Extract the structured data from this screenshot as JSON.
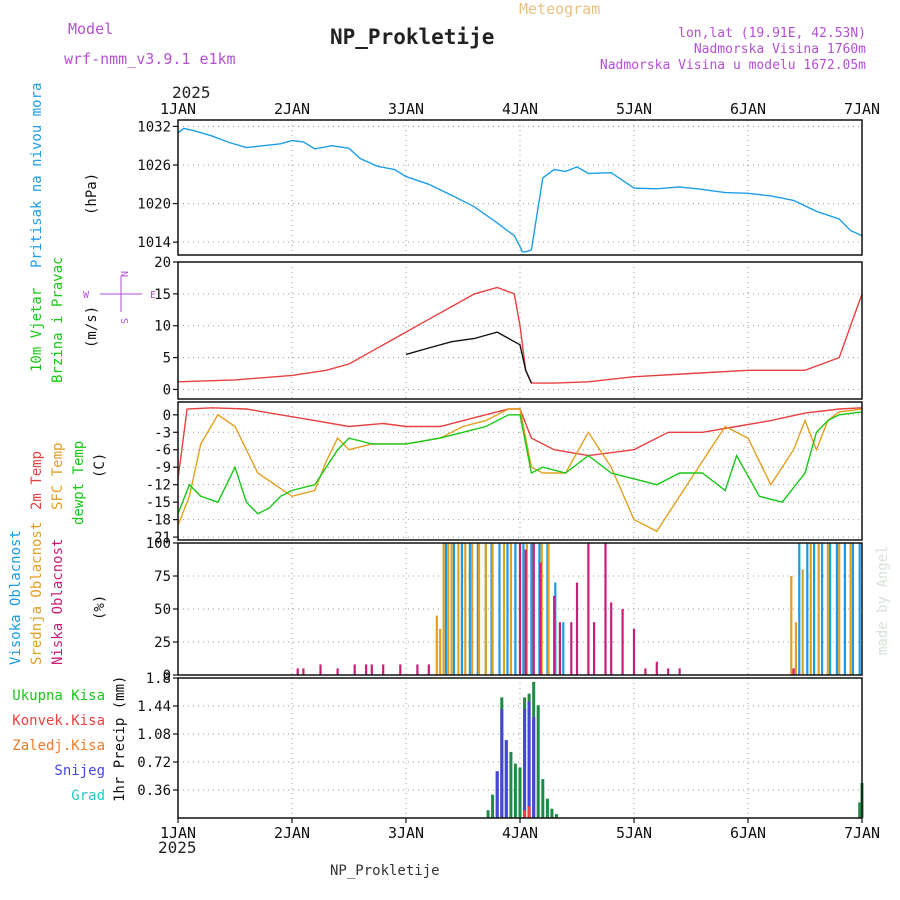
{
  "header": {
    "model_label": "Model",
    "model_name": "wrf-nmm_v3.9.1 e1km",
    "station": "NP_Prokletije",
    "meteogram": "Meteogram",
    "lonlat": "lon,lat (19.91E, 42.53N)",
    "elevation": "Nadmorska Visina 1760m",
    "model_elevation": "Nadmorska Visina u modelu 1672.05m",
    "credit": "made by Angel",
    "footer_station": "NP_Prokletije"
  },
  "time_axis": {
    "year": "2025",
    "labels": [
      "1JAN",
      "2JAN",
      "3JAN",
      "4JAN",
      "5JAN",
      "6JAN",
      "7JAN"
    ]
  },
  "colors": {
    "pressure": "#1e9ee8",
    "temp2m": "#e84040",
    "sfc": "#e0a020",
    "dewpt": "#18c818",
    "high_cloud": "#1a9be8",
    "mid_cloud": "#e0a020",
    "low_cloud": "#c81e78",
    "total_precip": "#1e8a46",
    "snow": "#4646d2",
    "legend_green": "#18c818",
    "legend_red": "#f04040",
    "legend_orange": "#f07a28",
    "legend_blue": "#4646e6",
    "legend_cyan": "#28c8c8",
    "magenta": "#b450d2",
    "gold": "#e8b848"
  },
  "chart_data": [
    {
      "type": "line",
      "panel": "pressure",
      "ylabel": "Pritisak na nivou mora",
      "unit": "(hPa)",
      "yticks": [
        1014,
        1020,
        1026,
        1032
      ],
      "ylim": [
        1012,
        1033
      ],
      "xlim": [
        0,
        6
      ],
      "grid": true,
      "series": [
        {
          "color_key": "pressure",
          "x": [
            0,
            0.05,
            0.15,
            0.3,
            0.45,
            0.6,
            0.75,
            0.9,
            1.0,
            1.1,
            1.2,
            1.35,
            1.5,
            1.6,
            1.75,
            1.9,
            2.0,
            2.2,
            2.4,
            2.6,
            2.8,
            2.95,
            3.0,
            3.02,
            3.05,
            3.1,
            3.2,
            3.3,
            3.4,
            3.5,
            3.6,
            3.8,
            4.0,
            4.2,
            4.4,
            4.6,
            4.8,
            5.0,
            5.2,
            5.4,
            5.6,
            5.8,
            5.9,
            6.0
          ],
          "y": [
            1031,
            1031.7,
            1031.3,
            1030.5,
            1029.5,
            1028.7,
            1029,
            1029.3,
            1029.8,
            1029.6,
            1028.5,
            1029,
            1028.6,
            1027,
            1025.8,
            1025.3,
            1024.2,
            1023,
            1021.3,
            1019.5,
            1017,
            1015,
            1013.3,
            1012.5,
            1012.5,
            1012.8,
            1024,
            1025.3,
            1025,
            1025.7,
            1024.7,
            1024.8,
            1022.4,
            1022.3,
            1022.6,
            1022.2,
            1021.7,
            1021.6,
            1021.2,
            1020.5,
            1018.8,
            1017.6,
            1015.8,
            1015
          ]
        }
      ]
    },
    {
      "type": "line",
      "panel": "wind",
      "ylabel": "10m Vjetar Brzina i Pravac",
      "unit": "(m/s)",
      "compass": "N S E W",
      "yticks": [
        0,
        5,
        10,
        15,
        20
      ],
      "ylim": [
        -1.5,
        20
      ],
      "xlim": [
        0,
        6
      ],
      "series": [
        {
          "name": "gust",
          "color_key": "temp2m",
          "x": [
            0,
            0.5,
            1.0,
            1.3,
            1.5,
            1.7,
            2.0,
            2.2,
            2.4,
            2.6,
            2.8,
            2.95,
            3.0,
            3.05,
            3.1,
            3.3,
            3.6,
            4.0,
            4.5,
            5.0,
            5.5,
            5.8,
            6.0
          ],
          "y": [
            1.2,
            1.5,
            2.2,
            3,
            4,
            6,
            9,
            11,
            13,
            15,
            16,
            15,
            10,
            3,
            1,
            1,
            1.2,
            2,
            2.5,
            3,
            3,
            5,
            15
          ]
        },
        {
          "name": "speed",
          "color_key": "text",
          "x": [
            2.0,
            2.2,
            2.4,
            2.6,
            2.8,
            3.0,
            3.05,
            3.1
          ],
          "y": [
            5.5,
            6.5,
            7.5,
            8,
            9,
            7,
            3,
            1
          ]
        }
      ]
    },
    {
      "type": "line",
      "panel": "temperature",
      "ylabel": "2m Temp / SFC Temp / dewpt Temp",
      "unit": "(C)",
      "yticks": [
        0,
        -3,
        -6,
        -9,
        -12,
        -15,
        -18,
        -21
      ],
      "ylim": [
        -21.5,
        2.2
      ],
      "xlim": [
        0,
        6
      ],
      "series": [
        {
          "name": "2m Temp",
          "color_key": "temp2m",
          "x": [
            0,
            0.08,
            0.3,
            0.6,
            0.9,
            1.2,
            1.5,
            1.8,
            2.0,
            2.3,
            2.6,
            2.9,
            3.0,
            3.1,
            3.3,
            3.6,
            3.8,
            4.0,
            4.3,
            4.6,
            4.9,
            5.2,
            5.5,
            5.8,
            6.0
          ],
          "y": [
            -11,
            1,
            1.2,
            1,
            0,
            -1,
            -2,
            -1.5,
            -2,
            -2,
            -0.5,
            1,
            1,
            -4,
            -6,
            -7,
            -6.5,
            -6,
            -3,
            -3,
            -2,
            -1,
            0.3,
            1,
            1.2
          ]
        },
        {
          "name": "SFC Temp",
          "color_key": "sfc",
          "x": [
            0,
            0.1,
            0.2,
            0.35,
            0.5,
            0.7,
            1.0,
            1.2,
            1.3,
            1.4,
            1.5,
            1.7,
            2.0,
            2.3,
            2.5,
            2.7,
            2.9,
            3.0,
            3.1,
            3.2,
            3.4,
            3.6,
            3.8,
            4.0,
            4.2,
            4.4,
            4.6,
            4.8,
            5.0,
            5.2,
            5.4,
            5.5,
            5.6,
            5.7,
            5.8,
            6.0
          ],
          "y": [
            -19,
            -14,
            -5,
            0,
            -2,
            -10,
            -14,
            -13,
            -8,
            -4,
            -6,
            -5,
            -5,
            -4,
            -2,
            -1,
            1,
            1,
            -9,
            -10,
            -10,
            -3,
            -9,
            -18,
            -20,
            -14,
            -8,
            -2,
            -4,
            -12,
            -6,
            -1,
            -6,
            -1,
            0.5,
            1
          ]
        },
        {
          "name": "dewpt Temp",
          "color_key": "dewpt",
          "x": [
            0,
            0.1,
            0.2,
            0.35,
            0.5,
            0.6,
            0.7,
            0.8,
            0.9,
            1.0,
            1.2,
            1.3,
            1.4,
            1.5,
            1.7,
            2.0,
            2.3,
            2.5,
            2.7,
            2.9,
            3.0,
            3.1,
            3.2,
            3.4,
            3.6,
            3.8,
            4.0,
            4.2,
            4.4,
            4.6,
            4.8,
            4.9,
            5.1,
            5.3,
            5.5,
            5.6,
            5.7,
            5.8,
            6.0
          ],
          "y": [
            -17,
            -12,
            -14,
            -15,
            -9,
            -15,
            -17,
            -16,
            -14,
            -13,
            -12,
            -9,
            -6,
            -4,
            -5,
            -5,
            -4,
            -3,
            -2,
            0,
            0,
            -10,
            -9,
            -10,
            -7,
            -10,
            -11,
            -12,
            -10,
            -10,
            -13,
            -7,
            -14,
            -15,
            -10,
            -3,
            -1,
            0,
            0.5
          ]
        }
      ]
    },
    {
      "type": "bar",
      "panel": "cloud",
      "ylabel": "Visoka Oblacnost / Srednja Oblacnost / Niska Oblacnost",
      "unit": "(%)",
      "yticks": [
        0,
        25,
        50,
        75,
        100
      ],
      "ylim": [
        0,
        100
      ],
      "xlim": [
        0,
        6
      ],
      "series": [
        {
          "name": "Visoka Oblacnost",
          "color_key": "high_cloud",
          "x": [
            2.35,
            2.42,
            2.49,
            2.56,
            2.63,
            2.7,
            2.75,
            2.82,
            2.89,
            2.96,
            3.03,
            3.1,
            3.17,
            3.24,
            3.31,
            3.38,
            5.45,
            5.52,
            5.58,
            5.65,
            5.72,
            5.78,
            5.85,
            5.92,
            5.98
          ],
          "y": [
            100,
            100,
            100,
            100,
            100,
            100,
            100,
            100,
            100,
            100,
            100,
            100,
            100,
            100,
            70,
            40,
            100,
            100,
            100,
            100,
            100,
            100,
            100,
            100,
            100
          ]
        },
        {
          "name": "Srednja Oblacnost",
          "color_key": "mid_cloud",
          "x": [
            2.27,
            2.3,
            2.33,
            2.37,
            2.4,
            2.46,
            2.52,
            2.58,
            2.64,
            2.7,
            2.76,
            2.86,
            2.92,
            3.06,
            3.12,
            3.19,
            3.25,
            5.38,
            5.42,
            5.48,
            5.55,
            5.62,
            5.7,
            5.8,
            5.9
          ],
          "y": [
            45,
            35,
            100,
            100,
            100,
            100,
            100,
            100,
            100,
            100,
            100,
            100,
            100,
            100,
            100,
            100,
            100,
            75,
            40,
            80,
            100,
            100,
            100,
            100,
            100
          ]
        },
        {
          "name": "Niska Oblacnost",
          "color_key": "low_cloud",
          "x": [
            1.05,
            1.1,
            1.25,
            1.4,
            1.55,
            1.65,
            1.7,
            1.8,
            1.95,
            2.1,
            2.2,
            3.0,
            3.05,
            3.12,
            3.18,
            3.3,
            3.35,
            3.45,
            3.5,
            3.6,
            3.65,
            3.75,
            3.8,
            3.9,
            4.0,
            4.1,
            4.2,
            4.3,
            4.4,
            5.4
          ],
          "y": [
            5,
            5,
            8,
            5,
            8,
            8,
            8,
            8,
            8,
            8,
            8,
            100,
            95,
            100,
            85,
            60,
            40,
            40,
            70,
            100,
            40,
            100,
            55,
            50,
            35,
            5,
            10,
            5,
            5,
            5
          ]
        }
      ]
    },
    {
      "type": "bar",
      "panel": "precip",
      "ylabel": "1hr Precip",
      "unit": "(mm)",
      "legend": [
        "Ukupna Kisa",
        "Konvek.Kisa",
        "Zaledj.Kisa",
        "Snijeg",
        "Grad"
      ],
      "yticks": [
        0.36,
        0.72,
        1.08,
        1.44,
        1.8
      ],
      "ylim": [
        0,
        1.8
      ],
      "xlim": [
        0,
        6
      ],
      "series": [
        {
          "name": "Ukupna Kisa",
          "color_key": "total_precip",
          "x": [
            2.72,
            2.76,
            2.8,
            2.84,
            2.88,
            2.92,
            2.96,
            3.0,
            3.04,
            3.08,
            3.12,
            3.16,
            3.2,
            3.24,
            3.28,
            3.32,
            5.98,
            6.0
          ],
          "y": [
            0.1,
            0.3,
            0.6,
            1.55,
            1.0,
            0.85,
            0.7,
            0.65,
            1.55,
            1.6,
            1.75,
            1.45,
            0.5,
            0.25,
            0.12,
            0.05,
            0.2,
            0.45
          ]
        },
        {
          "name": "Snijeg",
          "color_key": "snow",
          "x": [
            2.8,
            2.84,
            2.88,
            3.04,
            3.08,
            3.12
          ],
          "y": [
            0.6,
            1.4,
            1.0,
            1.4,
            1.5,
            1.3
          ]
        },
        {
          "name": "Konvek.Kisa",
          "color_key": "legend_red",
          "x": [
            3.04,
            3.08
          ],
          "y": [
            0.1,
            0.15
          ]
        }
      ]
    }
  ]
}
